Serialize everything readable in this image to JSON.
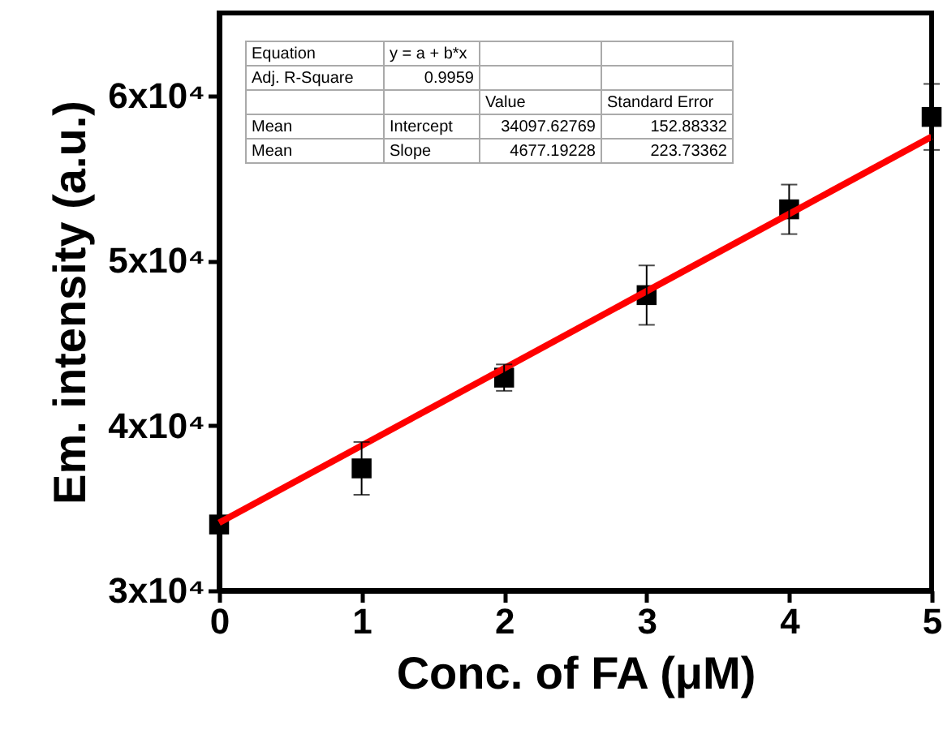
{
  "chart_data": {
    "type": "scatter",
    "xlabel": "Conc. of FA (μM)",
    "ylabel": "Em. intensity (a.u.)",
    "x": [
      0,
      1,
      2,
      3,
      4,
      5
    ],
    "series": [
      {
        "type": "scatter",
        "color": "#000000",
        "marker": "square",
        "values": [
          34000,
          37400,
          42900,
          47900,
          53100,
          58700
        ],
        "errors": [
          null,
          1600,
          800,
          1800,
          1500,
          2000
        ]
      },
      {
        "type": "line",
        "color": "#ff0000",
        "marker": "none",
        "x": [
          0,
          5
        ],
        "values": [
          34100,
          57500
        ]
      }
    ],
    "xlim": [
      0,
      5
    ],
    "xticks": [
      0,
      1,
      2,
      3,
      4,
      5
    ],
    "ylim": [
      30000,
      65000
    ],
    "yticks": [
      {
        "value": 30000,
        "label": "3x10⁴"
      },
      {
        "value": 40000,
        "label": "4x10⁴"
      },
      {
        "value": 50000,
        "label": "5x10⁴"
      },
      {
        "value": 60000,
        "label": "6x10⁴"
      }
    ],
    "grid": false,
    "annotations": [
      "Equation",
      "y = a + b*x",
      "Adj. R-Square",
      "0.9959",
      "Value",
      "Standard Error",
      "Mean",
      "Intercept",
      "34097.62769",
      "152.88332",
      "Mean",
      "Slope",
      "4677.19228",
      "223.73362"
    ]
  }
}
